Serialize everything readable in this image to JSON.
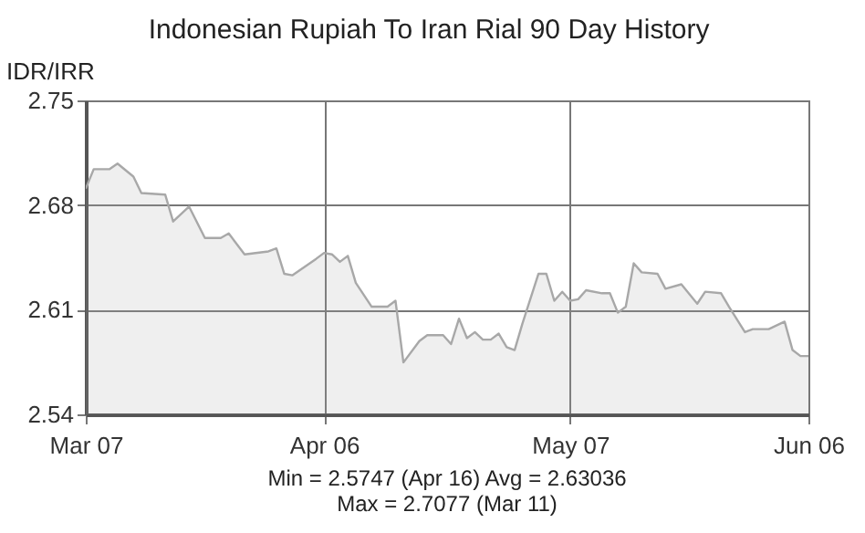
{
  "chart_data": {
    "type": "area",
    "title": "Indonesian Rupiah To Iran Rial 90 Day History",
    "ylabel": "IDR/IRR",
    "x": [
      "--03-07",
      "--03-08",
      "--03-10",
      "--03-11",
      "--03-13",
      "--03-14",
      "--03-17",
      "--03-18",
      "--03-20",
      "--03-22",
      "--03-24",
      "--03-25",
      "--03-27",
      "--03-30",
      "--03-31",
      "--04-01",
      "--04-02",
      "--04-05",
      "--04-06",
      "--04-07",
      "--04-08",
      "--04-09",
      "--04-10",
      "--04-12",
      "--04-14",
      "--04-15",
      "--04-16",
      "--04-18",
      "--04-19",
      "--04-21",
      "--04-22",
      "--04-23",
      "--04-24",
      "--04-25",
      "--04-26",
      "--04-27",
      "--04-28",
      "--04-29",
      "--04-30",
      "--05-01",
      "--05-03",
      "--05-04",
      "--05-05",
      "--05-06",
      "--05-07",
      "--05-08",
      "--05-09",
      "--05-11",
      "--05-12",
      "--05-13",
      "--05-14",
      "--05-15",
      "--05-16",
      "--05-18",
      "--05-19",
      "--05-21",
      "--05-23",
      "--05-24",
      "--05-26",
      "--05-27",
      "--05-29",
      "--05-30",
      "--06-01",
      "--06-03",
      "--06-04",
      "--06-05",
      "--06-06"
    ],
    "series": [
      {
        "color": "#a8a8a8",
        "values": [
          2.691,
          2.704,
          2.704,
          2.7077,
          2.699,
          2.688,
          2.687,
          2.669,
          2.679,
          2.658,
          2.658,
          2.661,
          2.647,
          2.649,
          2.651,
          2.634,
          2.633,
          2.644,
          2.648,
          2.647,
          2.642,
          2.646,
          2.628,
          2.612,
          2.612,
          2.616,
          2.5747,
          2.589,
          2.593,
          2.593,
          2.587,
          2.604,
          2.591,
          2.595,
          2.59,
          2.59,
          2.594,
          2.585,
          2.583,
          2.601,
          2.634,
          2.634,
          2.616,
          2.622,
          2.616,
          2.617,
          2.623,
          2.621,
          2.621,
          2.608,
          2.612,
          2.641,
          2.635,
          2.634,
          2.624,
          2.627,
          2.614,
          2.622,
          2.621,
          2.612,
          2.595,
          2.597,
          2.597,
          2.602,
          2.583,
          2.579,
          2.579
        ]
      }
    ],
    "xlim": [
      "--03-07",
      "--06-06"
    ],
    "xticks": [
      {
        "value": "--03-07",
        "label": "Mar 07"
      },
      {
        "value": "--04-06",
        "label": "Apr 06"
      },
      {
        "value": "--05-07",
        "label": "May 07"
      },
      {
        "value": "--06-06",
        "label": "Jun 06"
      }
    ],
    "ylim": [
      2.54,
      2.75
    ],
    "yticks": [
      2.54,
      2.61,
      2.68,
      2.75
    ],
    "grid": true,
    "annotations": [
      "Min = 2.5747 (Apr 16) Avg = 2.63036",
      "Max = 2.7077 (Mar 11)"
    ]
  }
}
